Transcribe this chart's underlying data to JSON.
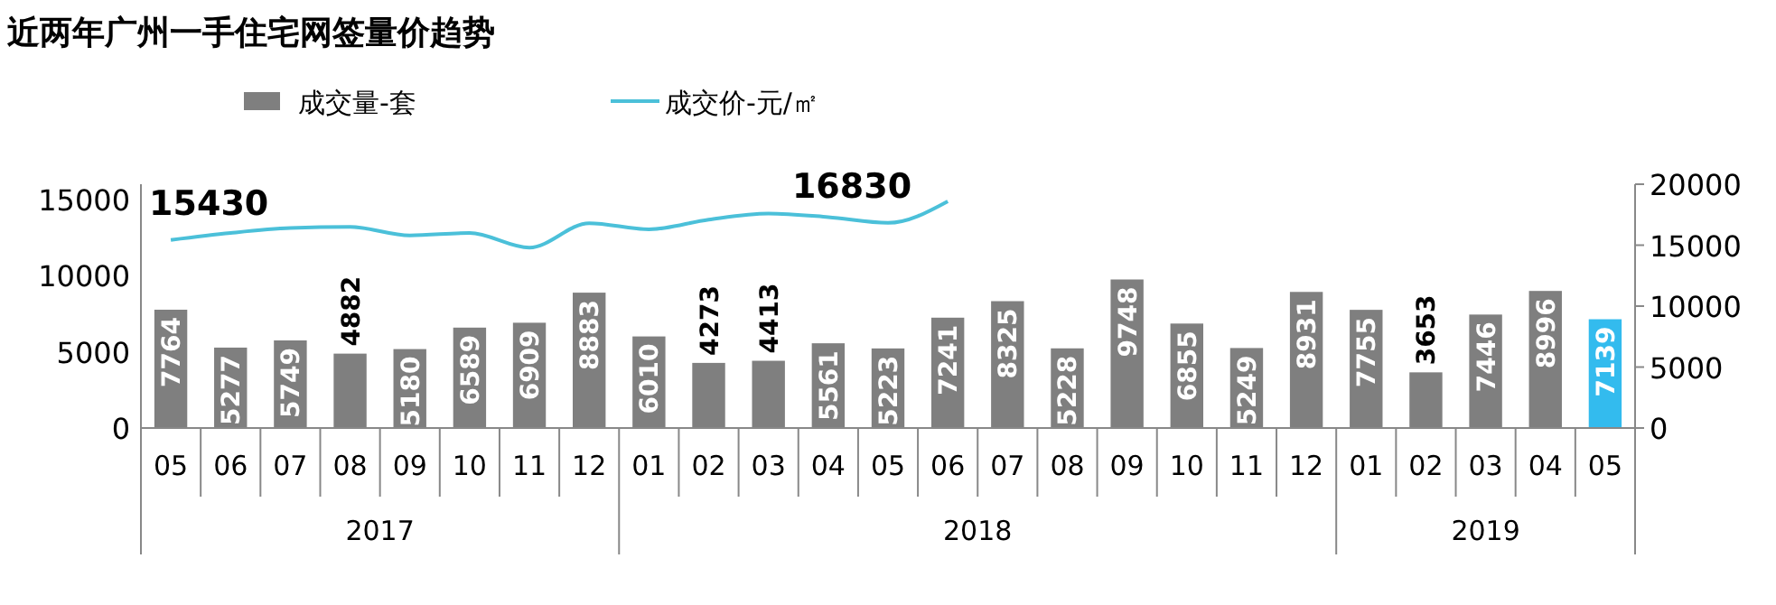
{
  "chart_data": {
    "type": "bar",
    "title": "近两年广州一手住宅网签量价趋势",
    "categories": [
      "05",
      "06",
      "07",
      "08",
      "09",
      "10",
      "11",
      "12",
      "01",
      "02",
      "03",
      "04",
      "05",
      "06",
      "07",
      "08",
      "09",
      "10",
      "11",
      "12",
      "01",
      "02",
      "03",
      "04",
      "05"
    ],
    "annotations": [
      "2017",
      "2018",
      "2019"
    ],
    "series": [
      {
        "name": "成交量-套",
        "color": "#7f7f7f",
        "colors": [
          "#7f7f7f",
          "#7f7f7f",
          "#7f7f7f",
          "#7f7f7f",
          "#7f7f7f",
          "#7f7f7f",
          "#7f7f7f",
          "#7f7f7f",
          "#7f7f7f",
          "#7f7f7f",
          "#7f7f7f",
          "#7f7f7f",
          "#7f7f7f",
          "#7f7f7f",
          "#7f7f7f",
          "#7f7f7f",
          "#7f7f7f",
          "#7f7f7f",
          "#7f7f7f",
          "#7f7f7f",
          "#7f7f7f",
          "#7f7f7f",
          "#7f7f7f",
          "#7f7f7f",
          "#33bbee"
        ],
        "values": [
          7764,
          5277,
          5749,
          4882,
          5180,
          6589,
          6909,
          8883,
          6010,
          4273,
          4413,
          5561,
          5223,
          7241,
          8325,
          5228,
          9748,
          6855,
          5249,
          8931,
          7755,
          3653,
          7446,
          8996,
          7139
        ]
      },
      {
        "name": "成交价-元/㎡",
        "type": "line",
        "axis": "y2",
        "color": "#4bc0d9",
        "values": [
          15430,
          16000,
          16400,
          16500,
          15800,
          16000,
          14800,
          16800,
          16300,
          17100,
          17600,
          17300,
          16830,
          18600,
          null,
          null,
          null,
          null,
          null,
          null,
          null,
          null,
          null,
          null,
          null
        ],
        "value_labels": [
          "15430",
          null,
          null,
          null,
          null,
          null,
          null,
          null,
          null,
          null,
          null,
          null,
          "16830",
          null,
          null,
          null,
          null,
          null,
          null,
          null,
          null,
          null,
          null,
          null,
          null
        ]
      }
    ],
    "data_labels": true,
    "ylim": [
      0,
      16000
    ],
    "yticks": [
      0,
      5000,
      10000,
      15000
    ],
    "y2lim": [
      0,
      20000
    ],
    "y2ticks": [
      0,
      5000,
      10000,
      15000,
      20000
    ],
    "legend": "top",
    "grid": false
  }
}
